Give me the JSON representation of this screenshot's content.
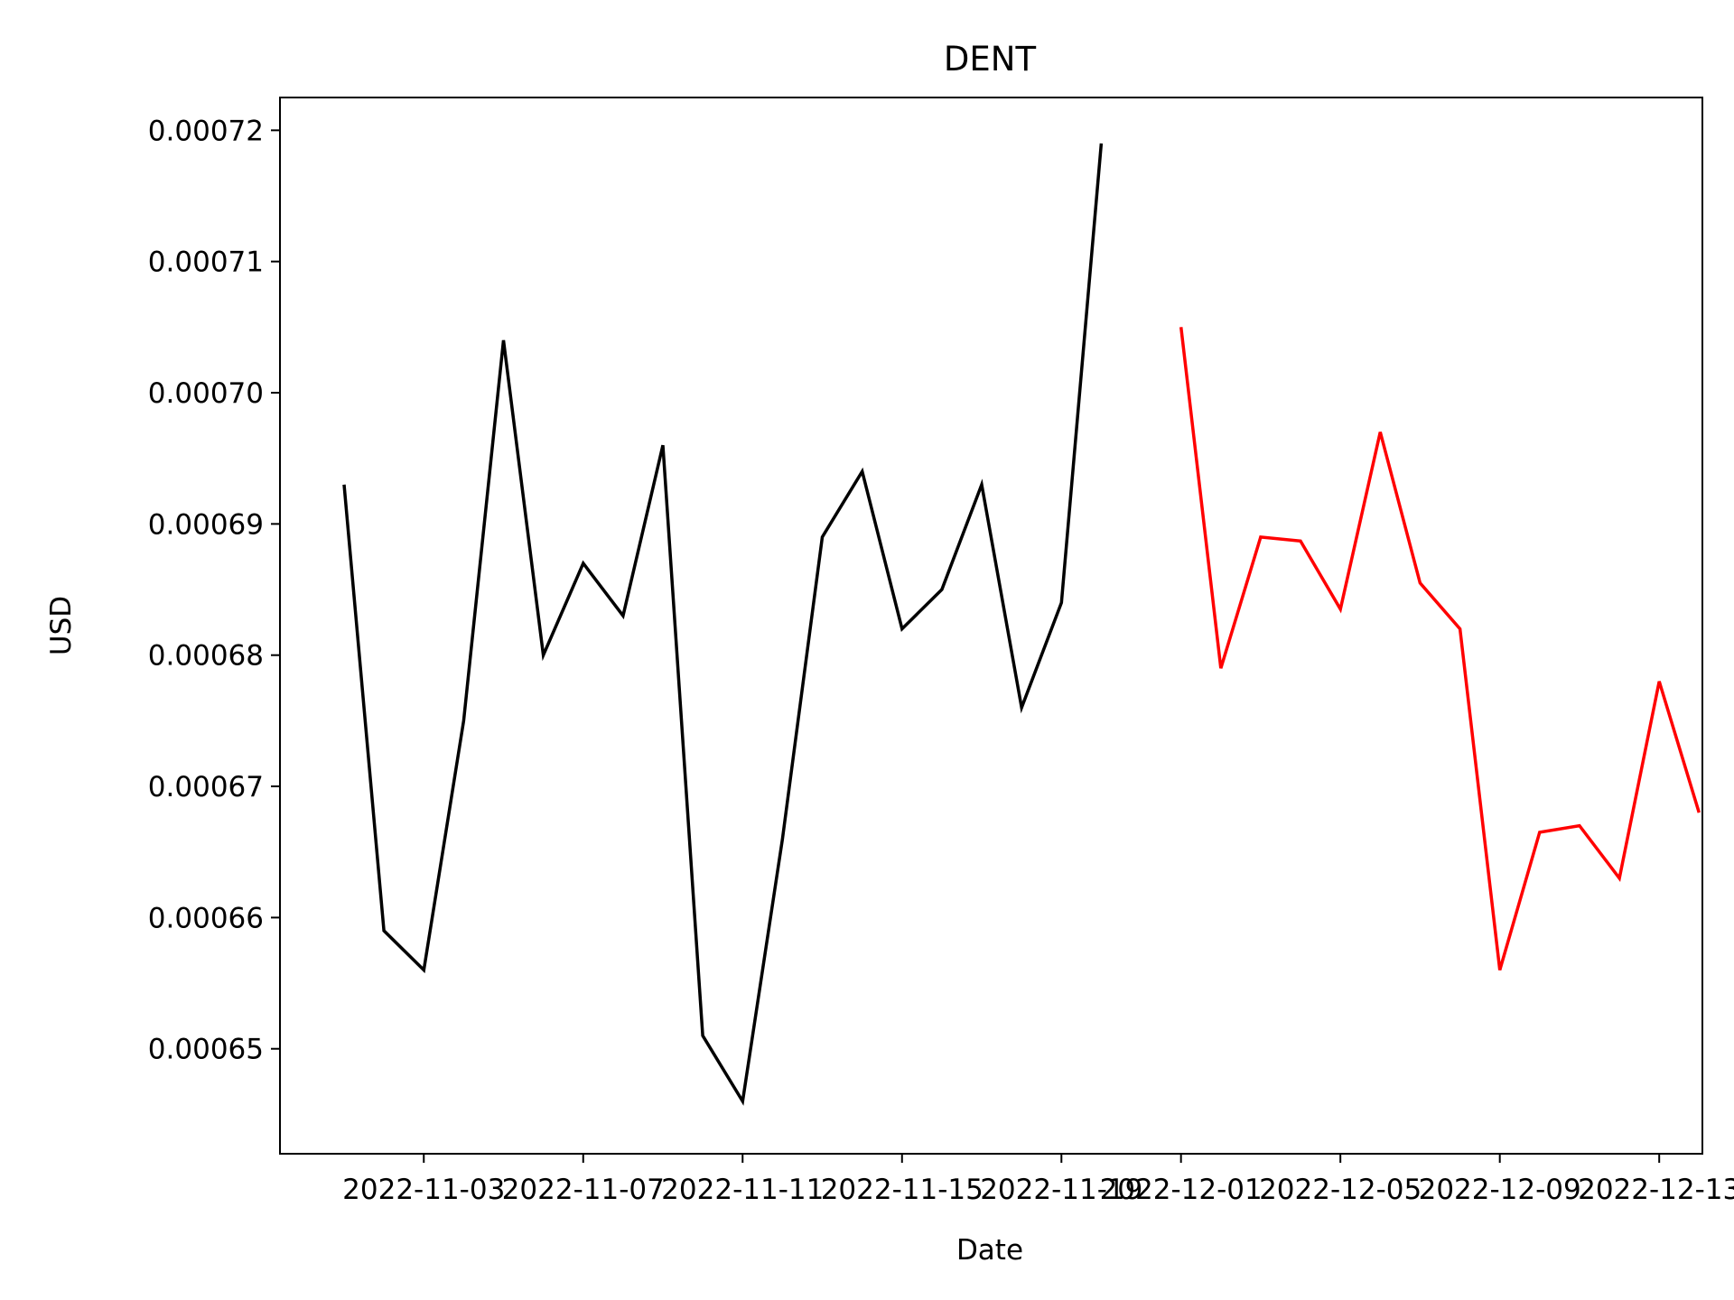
{
  "chart_data": {
    "type": "line",
    "title": "DENT",
    "xlabel": "Date",
    "ylabel": "USD",
    "x_tick_labels": [
      "2022-11-03",
      "2022-11-07",
      "2022-11-11",
      "2022-11-15",
      "2022-11-19",
      "2022-12-01",
      "2022-12-05",
      "2022-12-09",
      "2022-12-13"
    ],
    "y_tick_labels": [
      "0.00065",
      "0.00066",
      "0.00067",
      "0.00068",
      "0.00069",
      "0.00070",
      "0.00071",
      "0.00072"
    ],
    "ylim": [
      0.000642,
      0.0007225
    ],
    "grid": false,
    "series": [
      {
        "color": "#000000",
        "points": [
          [
            "2022-11-01",
            0.000693
          ],
          [
            "2022-11-02",
            0.000659
          ],
          [
            "2022-11-03",
            0.000656
          ],
          [
            "2022-11-04",
            0.000675
          ],
          [
            "2022-11-05",
            0.000704
          ],
          [
            "2022-11-06",
            0.00068
          ],
          [
            "2022-11-07",
            0.000687
          ],
          [
            "2022-11-08",
            0.000683
          ],
          [
            "2022-11-09",
            0.000696
          ],
          [
            "2022-11-10",
            0.000651
          ],
          [
            "2022-11-11",
            0.000646
          ],
          [
            "2022-11-12",
            0.000666
          ],
          [
            "2022-11-13",
            0.000689
          ],
          [
            "2022-11-14",
            0.000694
          ],
          [
            "2022-11-15",
            0.000682
          ],
          [
            "2022-11-16",
            0.000685
          ],
          [
            "2022-11-17",
            0.000693
          ],
          [
            "2022-11-18",
            0.000676
          ],
          [
            "2022-11-19",
            0.000684
          ],
          [
            "2022-11-20",
            0.000719
          ]
        ]
      },
      {
        "color": "#ff0000",
        "points": [
          [
            "2022-12-01",
            0.000705
          ],
          [
            "2022-12-02",
            0.000679
          ],
          [
            "2022-12-03",
            0.000689
          ],
          [
            "2022-12-04",
            0.0006887
          ],
          [
            "2022-12-05",
            0.0006835
          ],
          [
            "2022-12-06",
            0.000697
          ],
          [
            "2022-12-07",
            0.0006855
          ],
          [
            "2022-12-08",
            0.000682
          ],
          [
            "2022-12-09",
            0.000656
          ],
          [
            "2022-12-10",
            0.0006665
          ],
          [
            "2022-12-11",
            0.000667
          ],
          [
            "2022-12-12",
            0.000663
          ],
          [
            "2022-12-13",
            0.000678
          ],
          [
            "2022-12-14",
            0.000668
          ]
        ]
      }
    ]
  }
}
